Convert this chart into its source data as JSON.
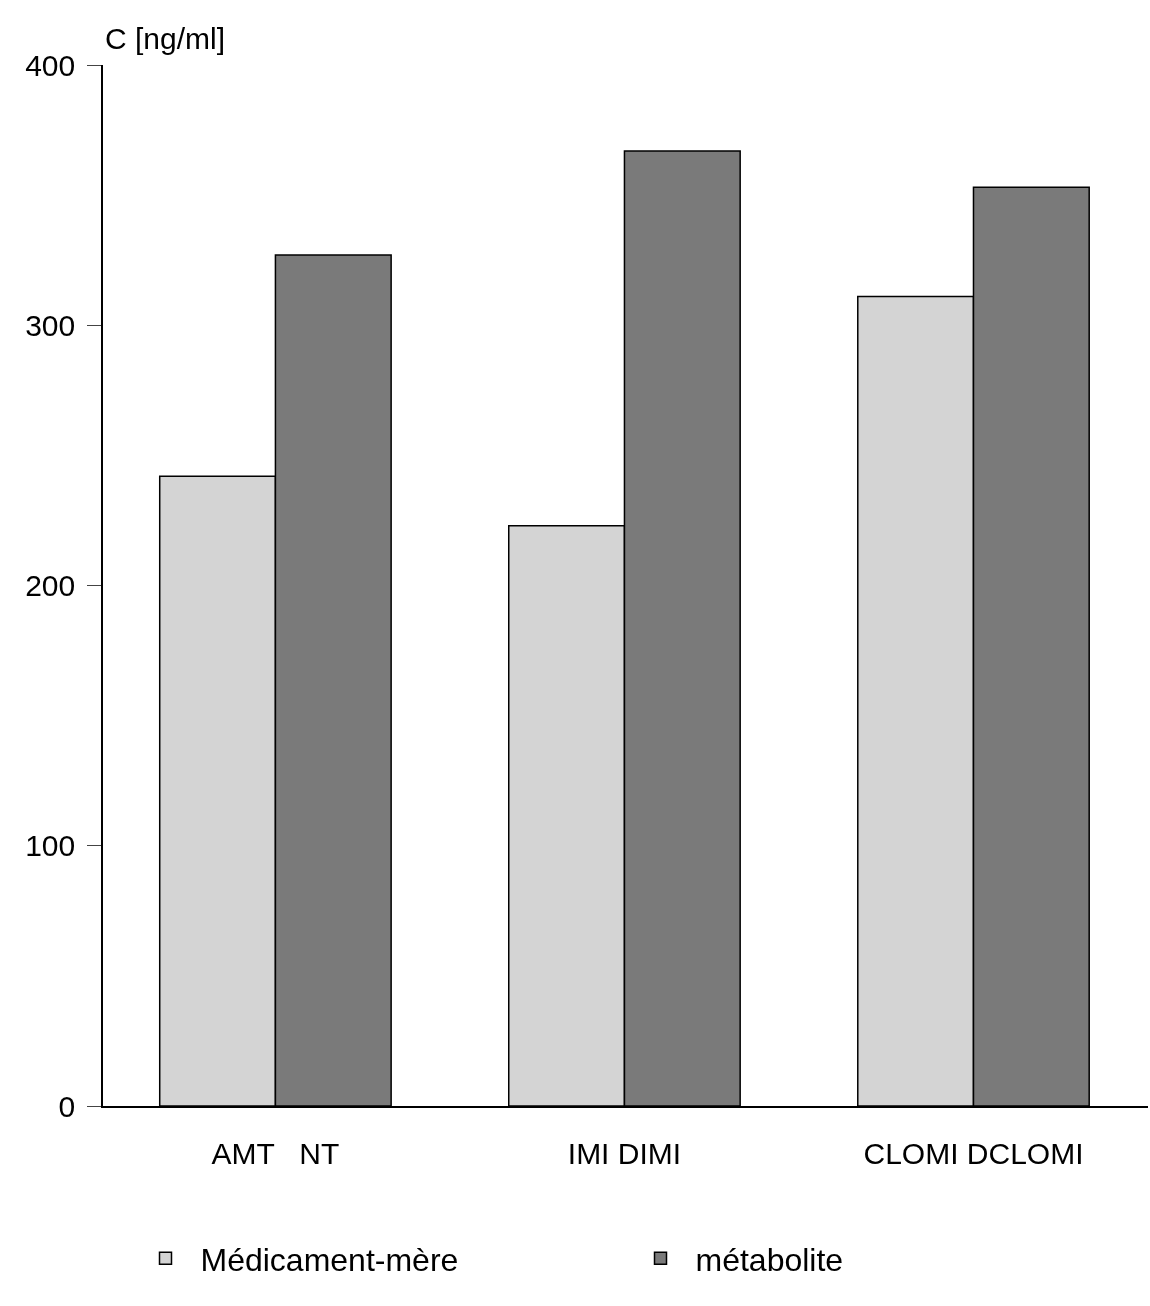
{
  "chart_data": {
    "type": "bar",
    "ylabel": "C [ng/ml]",
    "categories": [
      "AMT   NT",
      "IMI DIMI",
      "CLOMI DCLOMI"
    ],
    "series": [
      {
        "name": "Médicament-mère",
        "color": "#d4d4d4",
        "values": [
          242,
          223,
          311
        ]
      },
      {
        "name": "métabolite",
        "color": "#7a7a7a",
        "values": [
          327,
          367,
          353
        ]
      }
    ],
    "ylim": [
      0,
      400
    ],
    "yticks": [
      0,
      100,
      200,
      300,
      400
    ],
    "legend": "bottom"
  }
}
